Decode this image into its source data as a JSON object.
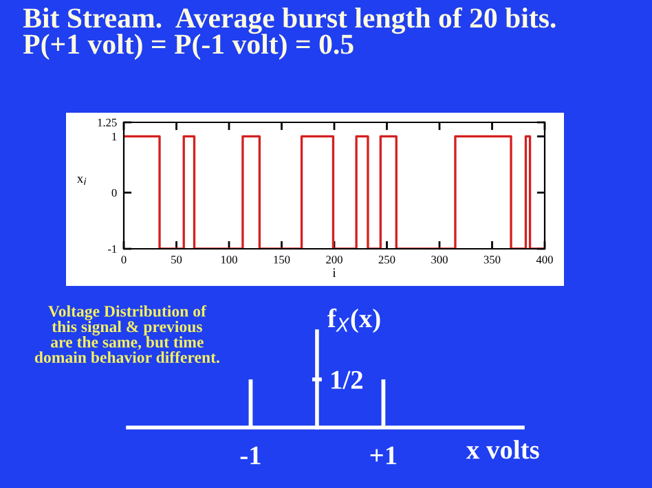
{
  "chart_data": [
    {
      "type": "step",
      "title": "Bit Stream.  Average burst length of 20 bits.\nP(+1 volt) = P(-1 volt) = 0.5",
      "xlabel": "i",
      "ylabel": "x$_{i}$",
      "x": [
        0,
        34,
        57,
        67,
        113,
        129,
        169,
        199,
        221,
        232,
        244,
        259,
        315,
        368,
        382,
        386,
        400
      ],
      "series": [
        {
          "color": "#d42020",
          "values": [
            1,
            -1,
            1,
            -1,
            1,
            -1,
            1,
            -1,
            1,
            -1,
            1,
            -1,
            1,
            -1,
            1,
            -1,
            -1
          ]
        }
      ],
      "xlim": [
        0,
        400
      ],
      "xticks": [
        0,
        50,
        100,
        150,
        200,
        250,
        300,
        350,
        400
      ],
      "ylim": [
        -1,
        1.25
      ],
      "yticks": [
        -1,
        0,
        1,
        1.25
      ],
      "grid": false,
      "legend": false
    },
    {
      "type": "bar",
      "ylabel": "f$_{X}$(x)",
      "xlabel": "x volts",
      "x": [
        -1,
        1
      ],
      "series": [
        {
          "color": "#ffffff",
          "values": [
            0.5,
            0.5
          ]
        }
      ],
      "xlim": [
        -2.85,
        3.1
      ],
      "xticks": [
        {
          "value": -1,
          "label": "-1"
        },
        {
          "value": 1,
          "label": "+1"
        }
      ],
      "ylim": [
        0,
        1
      ],
      "yticks": [
        {
          "value": 0.5,
          "label": "1/2"
        }
      ],
      "annotations": [
        "Voltage Distribution of\nthis signal & previous\nare the same, but time\ndomain behavior different."
      ],
      "grid": false,
      "legend": false
    }
  ]
}
